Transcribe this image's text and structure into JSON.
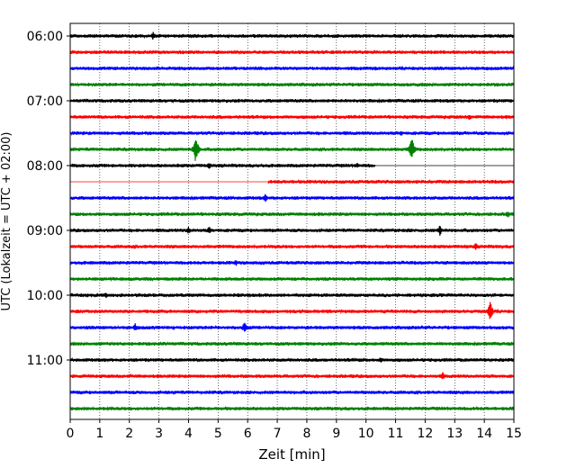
{
  "chart_data": {
    "type": "line",
    "title": "",
    "xlabel": "Zeit  [min]",
    "ylabel": "UTC (Lokalzeit = UTC + 02:00)",
    "xlim": [
      0,
      15
    ],
    "x_ticks": [
      "0",
      "1",
      "2",
      "3",
      "4",
      "5",
      "6",
      "7",
      "8",
      "9",
      "10",
      "11",
      "12",
      "13",
      "14",
      "15"
    ],
    "y_ticks": [
      "06:00",
      "07:00",
      "08:00",
      "09:00",
      "10:00",
      "11:00"
    ],
    "grid": "vertical dotted",
    "trace_colors": [
      "#000000",
      "#ff0000",
      "#0000ff",
      "#008000"
    ],
    "traces": [
      {
        "start": "06:00",
        "color": "#000000",
        "events": [
          {
            "t": 2.8,
            "amp": 5
          }
        ]
      },
      {
        "start": "06:15",
        "color": "#ff0000",
        "events": []
      },
      {
        "start": "06:30",
        "color": "#0000ff",
        "events": []
      },
      {
        "start": "06:45",
        "color": "#008000",
        "events": []
      },
      {
        "start": "07:00",
        "color": "#000000",
        "events": []
      },
      {
        "start": "07:15",
        "color": "#ff0000",
        "events": [
          {
            "t": 13.5,
            "amp": 4
          }
        ]
      },
      {
        "start": "07:30",
        "color": "#0000ff",
        "events": [
          {
            "t": 11.2,
            "amp": 4
          }
        ]
      },
      {
        "start": "07:45",
        "color": "#008000",
        "events": [
          {
            "t": 4.25,
            "amp": 17
          },
          {
            "t": 11.55,
            "amp": 15
          }
        ]
      },
      {
        "start": "08:00",
        "color": "#000000",
        "events": [
          {
            "t": 4.7,
            "amp": 4
          },
          {
            "t": 9.7,
            "amp": 4
          }
        ],
        "data_end": 10.3
      },
      {
        "start": "08:15",
        "color": "#ff0000",
        "events": [],
        "data_start": 6.7
      },
      {
        "start": "08:30",
        "color": "#0000ff",
        "events": [
          {
            "t": 6.6,
            "amp": 5
          }
        ]
      },
      {
        "start": "08:45",
        "color": "#008000",
        "events": [
          {
            "t": 14.8,
            "amp": 5
          }
        ]
      },
      {
        "start": "09:00",
        "color": "#000000",
        "events": [
          {
            "t": 4.0,
            "amp": 5
          },
          {
            "t": 4.7,
            "amp": 5
          },
          {
            "t": 12.5,
            "amp": 7
          }
        ]
      },
      {
        "start": "09:15",
        "color": "#ff0000",
        "events": [
          {
            "t": 13.7,
            "amp": 5
          }
        ]
      },
      {
        "start": "09:30",
        "color": "#0000ff",
        "events": [
          {
            "t": 5.6,
            "amp": 4
          }
        ]
      },
      {
        "start": "09:45",
        "color": "#008000",
        "events": []
      },
      {
        "start": "10:00",
        "color": "#000000",
        "events": [
          {
            "t": 1.2,
            "amp": 4
          }
        ]
      },
      {
        "start": "10:15",
        "color": "#ff0000",
        "events": [
          {
            "t": 14.2,
            "amp": 12
          }
        ]
      },
      {
        "start": "10:30",
        "color": "#0000ff",
        "events": [
          {
            "t": 2.2,
            "amp": 5
          },
          {
            "t": 5.9,
            "amp": 8
          }
        ]
      },
      {
        "start": "10:45",
        "color": "#008000",
        "events": []
      },
      {
        "start": "11:00",
        "color": "#000000",
        "events": [
          {
            "t": 10.5,
            "amp": 4
          }
        ]
      },
      {
        "start": "11:15",
        "color": "#ff0000",
        "events": [
          {
            "t": 12.6,
            "amp": 5
          }
        ]
      },
      {
        "start": "11:30",
        "color": "#0000ff",
        "events": []
      },
      {
        "start": "11:45",
        "color": "#008000",
        "events": []
      }
    ]
  }
}
